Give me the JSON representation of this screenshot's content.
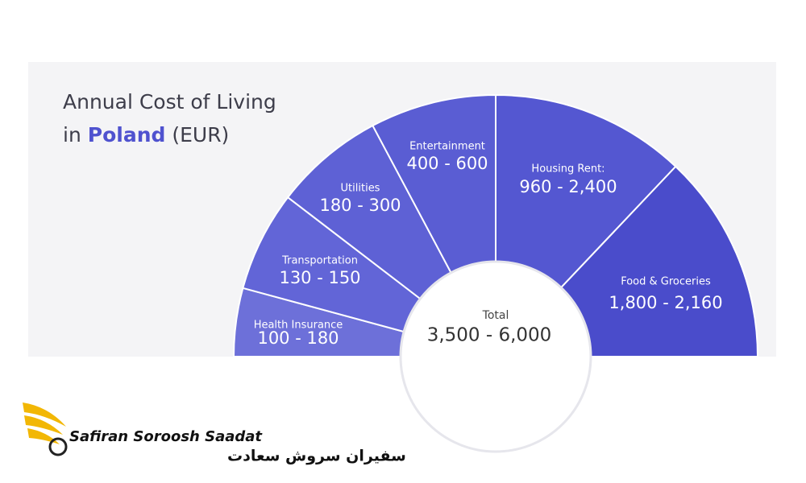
{
  "title": {
    "line1": "Annual Cost of Living",
    "line2_prefix": "in",
    "highlight": "Poland",
    "line2_suffix": "(EUR)"
  },
  "segments": [
    {
      "label": "Health Insurance",
      "range": "100 - 180"
    },
    {
      "label": "Transportation",
      "range": "130 - 150"
    },
    {
      "label": "Utilities",
      "range": "180 - 300"
    },
    {
      "label": "Entertainment",
      "range": "400 - 600"
    },
    {
      "label": "Housing Rent:",
      "range": "960 - 2,400"
    },
    {
      "label": "Food & Groceries",
      "range": "1,800 - 2,160"
    }
  ],
  "total": {
    "label": "Total",
    "range": "3,500 - 6,000"
  },
  "brand": {
    "name": "Safiran Soroosh Saadat",
    "name_fa": "سفیران سروش سعادت"
  }
}
